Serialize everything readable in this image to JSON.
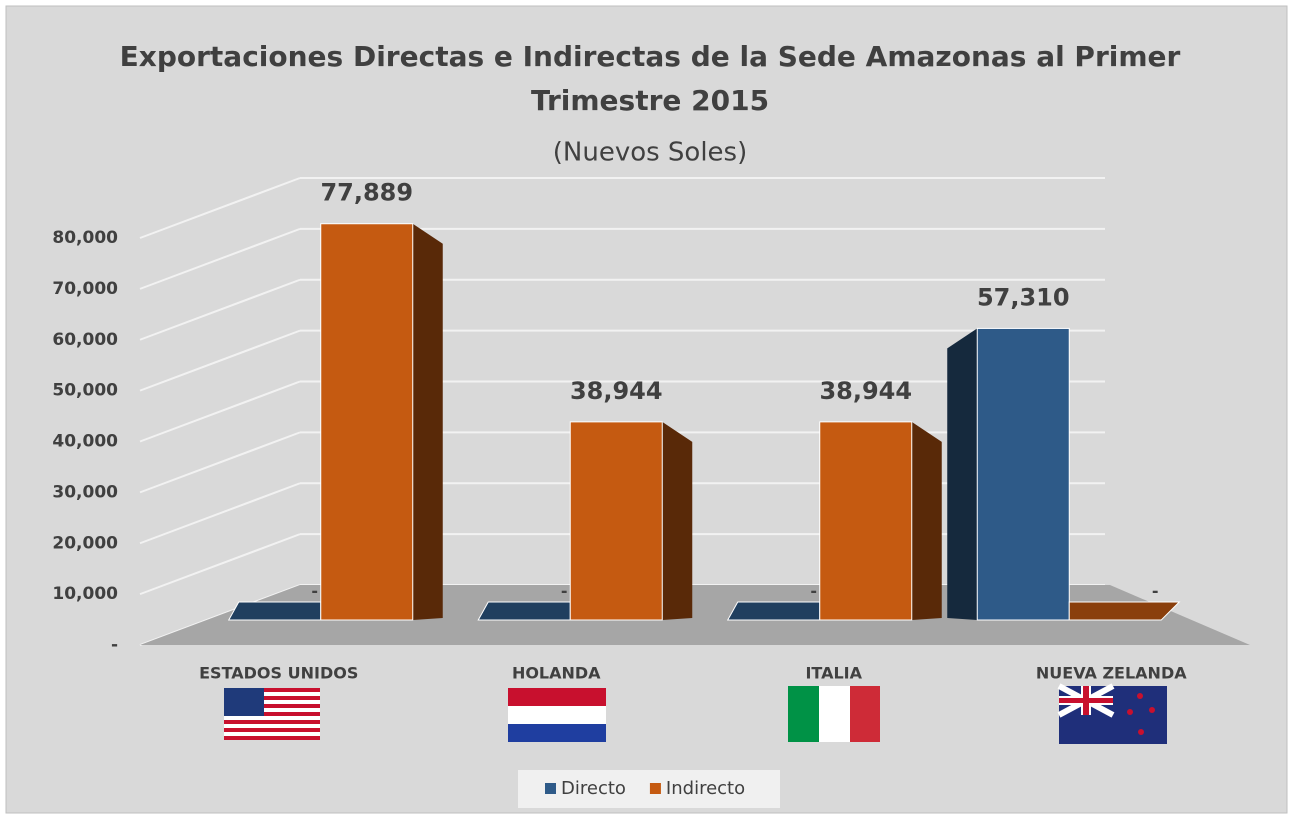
{
  "chart_data": {
    "type": "bar3d",
    "title": "Exportaciones Directas e Indirectas de la Sede Amazonas al Primer Trimestre 2015",
    "subtitle": "(Nuevos Soles)",
    "categories": [
      "ESTADOS UNIDOS",
      "HOLANDA",
      "ITALIA",
      "NUEVA ZELANDA"
    ],
    "series": [
      {
        "name": "Directo",
        "color": "#2e5a88",
        "values": [
          0,
          0,
          0,
          57310
        ],
        "value_labels": [
          "-",
          "-",
          "-",
          "57,310"
        ]
      },
      {
        "name": "Indirecto",
        "color": "#c55a11",
        "values": [
          77889,
          38944,
          38944,
          0
        ],
        "value_labels": [
          "77,889",
          "38,944",
          "38,944",
          "-"
        ]
      }
    ],
    "ylim": [
      0,
      80000
    ],
    "yticks": [
      {
        "value": 0,
        "label": "-"
      },
      {
        "value": 10000,
        "label": "10,000"
      },
      {
        "value": 20000,
        "label": "20,000"
      },
      {
        "value": 30000,
        "label": "30,000"
      },
      {
        "value": 40000,
        "label": "40,000"
      },
      {
        "value": 50000,
        "label": "50,000"
      },
      {
        "value": 60000,
        "label": "60,000"
      },
      {
        "value": 70000,
        "label": "70,000"
      },
      {
        "value": 80000,
        "label": "80,000"
      }
    ],
    "grid": true,
    "legend": "bottom"
  }
}
